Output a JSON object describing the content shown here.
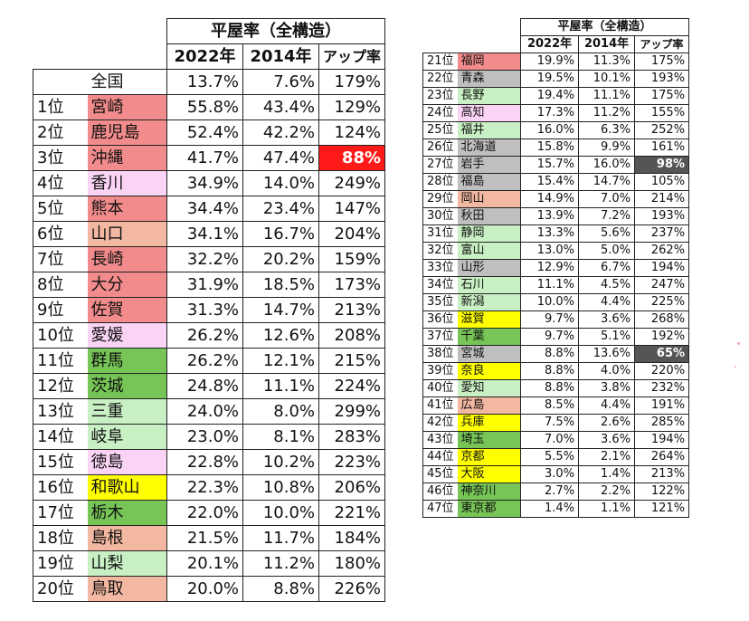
{
  "header": {
    "title": "平屋率（全構造）",
    "col_2022": "2022年",
    "col_2014": "2014年",
    "col_up": "アップ率"
  },
  "national": {
    "rank": "",
    "pref": "全国",
    "v2022": "13.7%",
    "v2014": "7.6%",
    "up": "179%"
  },
  "colors": {
    "red": "#f28b8b",
    "pink": "#fbd4f5",
    "salmon": "#f3b8a1",
    "lime": "#c9f0c4",
    "green": "#77c556",
    "yellow": "#ffff00",
    "grey": "#bfbfbf",
    "highlight_red": "#ff1a1a",
    "highlight_grey": "#555555"
  },
  "left_rows": [
    {
      "rank": "1位",
      "pref": "宮崎",
      "v2022": "55.8%",
      "v2014": "43.4%",
      "up": "129%",
      "color": "red"
    },
    {
      "rank": "2位",
      "pref": "鹿児島",
      "v2022": "52.4%",
      "v2014": "42.2%",
      "up": "124%",
      "color": "red"
    },
    {
      "rank": "3位",
      "pref": "沖縄",
      "v2022": "41.7%",
      "v2014": "47.4%",
      "up": "88%",
      "color": "red",
      "up_special": "red"
    },
    {
      "rank": "4位",
      "pref": "香川",
      "v2022": "34.9%",
      "v2014": "14.0%",
      "up": "249%",
      "color": "pink"
    },
    {
      "rank": "5位",
      "pref": "熊本",
      "v2022": "34.4%",
      "v2014": "23.4%",
      "up": "147%",
      "color": "red"
    },
    {
      "rank": "6位",
      "pref": "山口",
      "v2022": "34.1%",
      "v2014": "16.7%",
      "up": "204%",
      "color": "salmon"
    },
    {
      "rank": "7位",
      "pref": "長崎",
      "v2022": "32.2%",
      "v2014": "20.2%",
      "up": "159%",
      "color": "red"
    },
    {
      "rank": "8位",
      "pref": "大分",
      "v2022": "31.9%",
      "v2014": "18.5%",
      "up": "173%",
      "color": "red"
    },
    {
      "rank": "9位",
      "pref": "佐賀",
      "v2022": "31.3%",
      "v2014": "14.7%",
      "up": "213%",
      "color": "red"
    },
    {
      "rank": "10位",
      "pref": "愛媛",
      "v2022": "26.2%",
      "v2014": "12.6%",
      "up": "208%",
      "color": "pink"
    },
    {
      "rank": "11位",
      "pref": "群馬",
      "v2022": "26.2%",
      "v2014": "12.1%",
      "up": "215%",
      "color": "green"
    },
    {
      "rank": "12位",
      "pref": "茨城",
      "v2022": "24.8%",
      "v2014": "11.1%",
      "up": "224%",
      "color": "green"
    },
    {
      "rank": "13位",
      "pref": "三重",
      "v2022": "24.0%",
      "v2014": "8.0%",
      "up": "299%",
      "color": "lime"
    },
    {
      "rank": "14位",
      "pref": "岐阜",
      "v2022": "23.0%",
      "v2014": "8.1%",
      "up": "283%",
      "color": "lime"
    },
    {
      "rank": "15位",
      "pref": "徳島",
      "v2022": "22.8%",
      "v2014": "10.2%",
      "up": "223%",
      "color": "pink"
    },
    {
      "rank": "16位",
      "pref": "和歌山",
      "v2022": "22.3%",
      "v2014": "10.8%",
      "up": "206%",
      "color": "yellow"
    },
    {
      "rank": "17位",
      "pref": "栃木",
      "v2022": "22.0%",
      "v2014": "10.0%",
      "up": "221%",
      "color": "green"
    },
    {
      "rank": "18位",
      "pref": "島根",
      "v2022": "21.5%",
      "v2014": "11.7%",
      "up": "184%",
      "color": "salmon"
    },
    {
      "rank": "19位",
      "pref": "山梨",
      "v2022": "20.1%",
      "v2014": "11.2%",
      "up": "180%",
      "color": "lime"
    },
    {
      "rank": "20位",
      "pref": "鳥取",
      "v2022": "20.0%",
      "v2014": "8.8%",
      "up": "226%",
      "color": "salmon"
    }
  ],
  "right_rows": [
    {
      "rank": "21位",
      "pref": "福岡",
      "v2022": "19.9%",
      "v2014": "11.3%",
      "up": "175%",
      "color": "red"
    },
    {
      "rank": "22位",
      "pref": "青森",
      "v2022": "19.5%",
      "v2014": "10.1%",
      "up": "193%",
      "color": "grey"
    },
    {
      "rank": "23位",
      "pref": "長野",
      "v2022": "19.4%",
      "v2014": "11.1%",
      "up": "175%",
      "color": "lime"
    },
    {
      "rank": "24位",
      "pref": "高知",
      "v2022": "17.3%",
      "v2014": "11.2%",
      "up": "155%",
      "color": "pink"
    },
    {
      "rank": "25位",
      "pref": "福井",
      "v2022": "16.0%",
      "v2014": "6.3%",
      "up": "252%",
      "color": "lime"
    },
    {
      "rank": "26位",
      "pref": "北海道",
      "v2022": "15.8%",
      "v2014": "9.9%",
      "up": "161%",
      "color": "grey"
    },
    {
      "rank": "27位",
      "pref": "岩手",
      "v2022": "15.7%",
      "v2014": "16.0%",
      "up": "98%",
      "color": "grey",
      "up_special": "grey"
    },
    {
      "rank": "28位",
      "pref": "福島",
      "v2022": "15.4%",
      "v2014": "14.7%",
      "up": "105%",
      "color": "grey"
    },
    {
      "rank": "29位",
      "pref": "岡山",
      "v2022": "14.9%",
      "v2014": "7.0%",
      "up": "214%",
      "color": "salmon"
    },
    {
      "rank": "30位",
      "pref": "秋田",
      "v2022": "13.9%",
      "v2014": "7.2%",
      "up": "193%",
      "color": "grey"
    },
    {
      "rank": "31位",
      "pref": "静岡",
      "v2022": "13.3%",
      "v2014": "5.6%",
      "up": "237%",
      "color": "lime"
    },
    {
      "rank": "32位",
      "pref": "富山",
      "v2022": "13.0%",
      "v2014": "5.0%",
      "up": "262%",
      "color": "lime"
    },
    {
      "rank": "33位",
      "pref": "山形",
      "v2022": "12.9%",
      "v2014": "6.7%",
      "up": "194%",
      "color": "grey"
    },
    {
      "rank": "34位",
      "pref": "石川",
      "v2022": "11.1%",
      "v2014": "4.5%",
      "up": "247%",
      "color": "lime"
    },
    {
      "rank": "35位",
      "pref": "新潟",
      "v2022": "10.0%",
      "v2014": "4.4%",
      "up": "225%",
      "color": "lime"
    },
    {
      "rank": "36位",
      "pref": "滋賀",
      "v2022": "9.7%",
      "v2014": "3.6%",
      "up": "268%",
      "color": "yellow"
    },
    {
      "rank": "37位",
      "pref": "千葉",
      "v2022": "9.7%",
      "v2014": "5.1%",
      "up": "192%",
      "color": "green"
    },
    {
      "rank": "38位",
      "pref": "宮城",
      "v2022": "8.8%",
      "v2014": "13.6%",
      "up": "65%",
      "color": "grey",
      "up_special": "grey"
    },
    {
      "rank": "39位",
      "pref": "奈良",
      "v2022": "8.8%",
      "v2014": "4.0%",
      "up": "220%",
      "color": "yellow"
    },
    {
      "rank": "40位",
      "pref": "愛知",
      "v2022": "8.8%",
      "v2014": "3.8%",
      "up": "232%",
      "color": "lime"
    },
    {
      "rank": "41位",
      "pref": "広島",
      "v2022": "8.5%",
      "v2014": "4.4%",
      "up": "191%",
      "color": "salmon"
    },
    {
      "rank": "42位",
      "pref": "兵庫",
      "v2022": "7.5%",
      "v2014": "2.6%",
      "up": "285%",
      "color": "yellow"
    },
    {
      "rank": "43位",
      "pref": "埼玉",
      "v2022": "7.0%",
      "v2014": "3.6%",
      "up": "194%",
      "color": "green"
    },
    {
      "rank": "44位",
      "pref": "京都",
      "v2022": "5.5%",
      "v2014": "2.1%",
      "up": "264%",
      "color": "yellow"
    },
    {
      "rank": "45位",
      "pref": "大阪",
      "v2022": "3.0%",
      "v2014": "1.4%",
      "up": "213%",
      "color": "yellow"
    },
    {
      "rank": "46位",
      "pref": "神奈川",
      "v2022": "2.7%",
      "v2014": "2.2%",
      "up": "122%",
      "color": "green"
    },
    {
      "rank": "47位",
      "pref": "東京都",
      "v2022": "1.4%",
      "v2014": "1.1%",
      "up": "121%",
      "color": "green"
    }
  ]
}
